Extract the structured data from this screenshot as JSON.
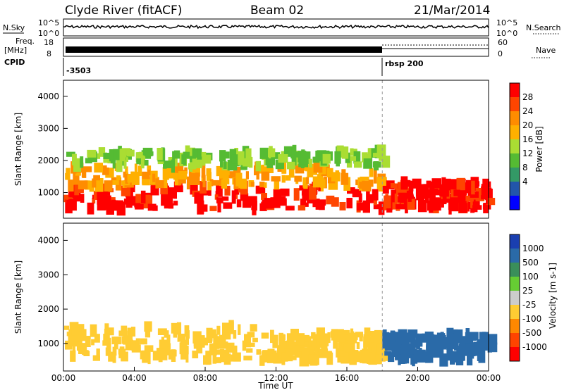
{
  "header": {
    "station": "Clyde River (fitACF)",
    "beam": "Beam 02",
    "date": "21/Mar/2014"
  },
  "top_panels": {
    "nsky_label": "N.Sky",
    "nsky_ticks": [
      "10^5",
      "10^0"
    ],
    "nsearch_label": "N.Search",
    "nsearch_ticks": [
      "10^5",
      "10^0"
    ],
    "freq_label_1": "Freq.",
    "freq_label_2": "[MHz]",
    "freq_ticks": [
      "18",
      "8"
    ],
    "nave_label": "Nave",
    "nave_ticks": [
      "60",
      "0"
    ],
    "cpid_label": "CPID",
    "cpid_first": "-3503",
    "cpid_second": "rbsp 200"
  },
  "chart_data": [
    {
      "type": "heatmap",
      "name": "power",
      "xlabel": "",
      "ylabel": "Slant Range [km]",
      "x_ticks": [
        "00:00",
        "04:00",
        "08:00",
        "12:00",
        "16:00",
        "20:00",
        "00:00"
      ],
      "xlim_hours": [
        0,
        24
      ],
      "ylim": [
        200,
        4500
      ],
      "y_ticks": [
        1000,
        2000,
        3000,
        4000
      ],
      "colorbar_label": "Power [dB]",
      "colorbar_ticks": [
        "28",
        "24",
        "20",
        "16",
        "12",
        "8",
        "4"
      ],
      "colors": [
        "#ff0000",
        "#ff4500",
        "#ff8c00",
        "#ffb000",
        "#aadd33",
        "#55bb33",
        "#339966",
        "#2255aa",
        "#0000ff"
      ],
      "bands": [
        {
          "t": [
            0,
            18
          ],
          "r": [
            500,
            1200
          ],
          "level": 28
        },
        {
          "t": [
            0,
            18
          ],
          "r": [
            1200,
            1800
          ],
          "level": 18
        },
        {
          "t": [
            0,
            18
          ],
          "r": [
            1800,
            2300
          ],
          "level": 10
        },
        {
          "t": [
            18,
            24
          ],
          "r": [
            500,
            1300
          ],
          "level": 28
        }
      ]
    },
    {
      "type": "heatmap",
      "name": "velocity",
      "xlabel": "Time UT",
      "ylabel": "Slant Range [km]",
      "x_ticks": [
        "00:00",
        "04:00",
        "08:00",
        "12:00",
        "16:00",
        "20:00",
        "00:00"
      ],
      "xlim_hours": [
        0,
        24
      ],
      "ylim": [
        200,
        4500
      ],
      "y_ticks": [
        1000,
        2000,
        3000,
        4000
      ],
      "colorbar_label": "Velocity [m s-1]",
      "colorbar_ticks": [
        "1000",
        "500",
        "100",
        "25",
        "-25",
        "-100",
        "-500",
        "-1000"
      ],
      "colors": [
        "#1a3fb0",
        "#2a6aa8",
        "#3a8f5a",
        "#66cc33",
        "#cccccc",
        "#ffcc33",
        "#ff8800",
        "#ff4400",
        "#ff0000"
      ],
      "bands": [
        {
          "t": [
            0,
            12
          ],
          "r": [
            500,
            1500
          ],
          "level": -100
        },
        {
          "t": [
            12,
            18
          ],
          "r": [
            500,
            1300
          ],
          "level": -100
        },
        {
          "t": [
            18,
            24
          ],
          "r": [
            500,
            1300
          ],
          "level": 500
        }
      ]
    }
  ],
  "dashed_marker_hour": 18
}
